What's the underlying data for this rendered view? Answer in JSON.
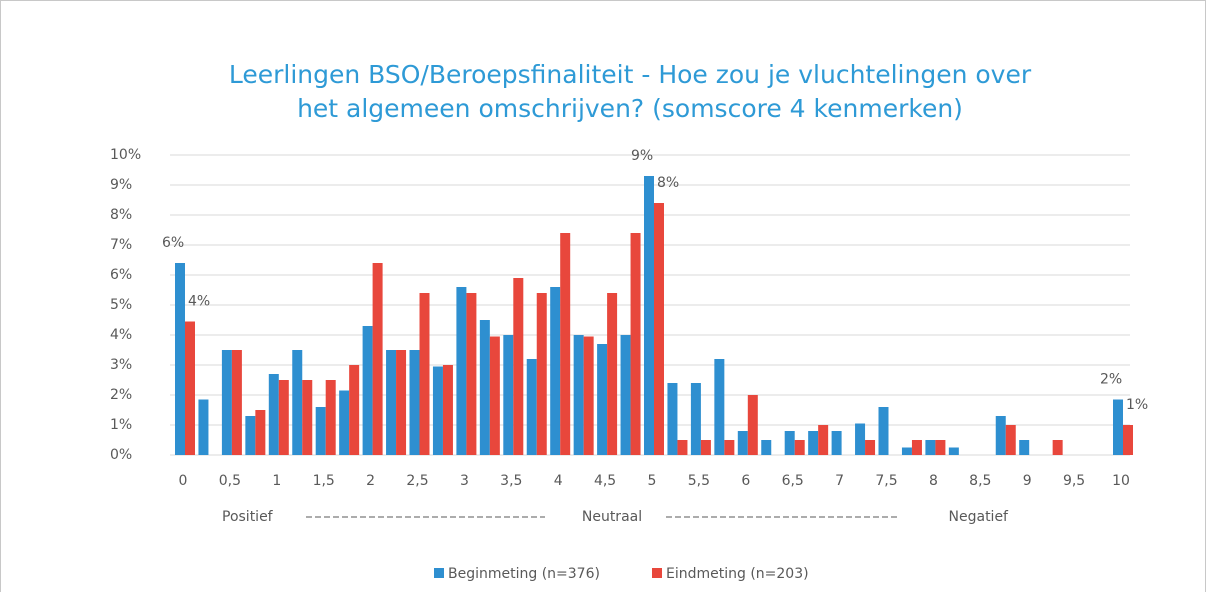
{
  "chart_data": {
    "type": "bar",
    "title": [
      "Leerlingen BSO/Beroepsfinaliteit - Hoe zou je vluchtelingen over",
      "het algemeen omschrijven? (somscore 4 kenmerken)"
    ],
    "categories": [
      "0",
      null,
      "0,5",
      null,
      "1",
      null,
      "1,5",
      null,
      "2",
      null,
      "2,5",
      null,
      "3",
      null,
      "3,5",
      null,
      "4",
      null,
      "4,5",
      null,
      "5",
      null,
      "5,5",
      null,
      "6",
      null,
      "6,5",
      null,
      "7",
      null,
      "7,5",
      null,
      "8",
      null,
      "8,5",
      null,
      "9",
      null,
      "9,5",
      null,
      "10"
    ],
    "xlabel": [
      "Positief",
      "Neutraal",
      "Negatief"
    ],
    "series": [
      {
        "name": "Beginmeting (n=376)",
        "color": "#2e8fd0",
        "values": [
          6.4,
          1.85,
          3.5,
          1.3,
          2.7,
          3.5,
          1.6,
          2.15,
          4.3,
          3.5,
          3.5,
          2.95,
          5.6,
          4.5,
          4.0,
          3.2,
          5.6,
          4.0,
          3.7,
          4.0,
          9.3,
          2.4,
          2.4,
          3.2,
          0.8,
          0.5,
          0.8,
          0.8,
          0.8,
          1.05,
          1.6,
          0.25,
          0.5,
          0.25,
          0,
          1.3,
          0.5,
          0,
          0,
          0,
          1.85
        ],
        "value_labels": [
          "6%",
          null,
          null,
          null,
          null,
          null,
          null,
          null,
          null,
          null,
          null,
          null,
          null,
          null,
          null,
          null,
          null,
          null,
          null,
          null,
          "9%",
          null,
          null,
          null,
          null,
          null,
          null,
          null,
          null,
          null,
          null,
          null,
          null,
          null,
          null,
          null,
          null,
          null,
          null,
          null,
          "2%"
        ]
      },
      {
        "name": "Eindmeting (n=203)",
        "color": "#e8473c",
        "values": [
          4.45,
          0,
          3.5,
          1.5,
          2.5,
          2.5,
          2.5,
          3.0,
          6.4,
          3.5,
          5.4,
          3.0,
          5.4,
          3.95,
          5.9,
          5.4,
          7.4,
          3.95,
          5.4,
          7.4,
          8.4,
          0.5,
          0.5,
          0.5,
          2.0,
          0,
          0.5,
          1.0,
          0,
          0.5,
          0,
          0.5,
          0.5,
          0,
          0,
          1.0,
          0,
          0.5,
          0,
          0,
          1.0
        ],
        "value_labels": [
          "4%",
          null,
          null,
          null,
          null,
          null,
          null,
          null,
          null,
          null,
          null,
          null,
          null,
          null,
          null,
          null,
          null,
          null,
          null,
          null,
          "8%",
          null,
          null,
          null,
          null,
          null,
          null,
          null,
          null,
          null,
          null,
          null,
          null,
          null,
          null,
          null,
          null,
          null,
          null,
          null,
          "1%"
        ]
      }
    ],
    "ylim": [
      0,
      10
    ],
    "yticks": [
      {
        "value": 0,
        "label": "0%"
      },
      {
        "value": 1,
        "label": "1%"
      },
      {
        "value": 2,
        "label": "2%"
      },
      {
        "value": 3,
        "label": "3%"
      },
      {
        "value": 4,
        "label": "4%"
      },
      {
        "value": 5,
        "label": "5%"
      },
      {
        "value": 6,
        "label": "6%"
      },
      {
        "value": 7,
        "label": "7%"
      },
      {
        "value": 8,
        "label": "8%"
      },
      {
        "value": 9,
        "label": "9%"
      },
      {
        "value": 10,
        "label": "10%"
      }
    ],
    "grid": true,
    "legend": "bottom"
  }
}
